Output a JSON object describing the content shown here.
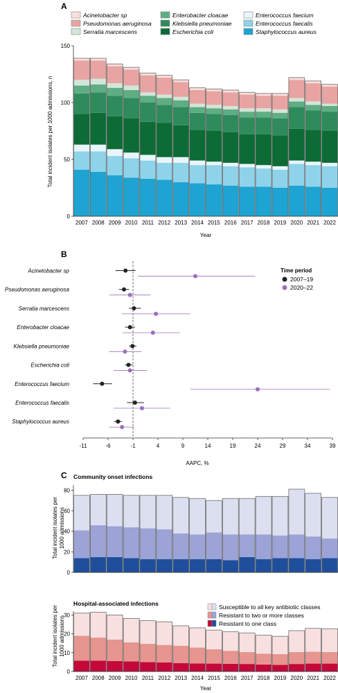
{
  "colors": {
    "acinetobacter": "#f9dede",
    "pseudomonas": "#e8a4a2",
    "serratia": "#d2e5d8",
    "enterobacter": "#5fae83",
    "klebsiella": "#2f8b5c",
    "ecoli": "#0d6b35",
    "efaecium": "#e8f6fb",
    "efaecalis": "#8fd3ea",
    "saureus": "#1ea4d3",
    "p2007": "#222222",
    "p2020": "#9b6fbd",
    "susceptible": "#dcdff0",
    "resist2": "#9ca3d6",
    "resist1_comm": "#1f4f9c",
    "susceptible_hosp": "#f9e0e0",
    "resist2_hosp": "#e6958f",
    "resist1_hosp": "#c4083a"
  },
  "panel_a": {
    "letter": "A",
    "legend": [
      {
        "key": "acinetobacter",
        "label": "Acinetobacter sp"
      },
      {
        "key": "enterobacter",
        "label": "Enterobacter cloacae"
      },
      {
        "key": "efaecium",
        "label": "Enterococcus faecium"
      },
      {
        "key": "pseudomonas",
        "label": "Pseudomonas aeruginosa"
      },
      {
        "key": "klebsiella",
        "label": "Klebsiella pneumoniae"
      },
      {
        "key": "efaecalis",
        "label": "Enterococcus faecalis"
      },
      {
        "key": "serratia",
        "label": "Serratia marcescens"
      },
      {
        "key": "ecoli",
        "label": "Escherichia coli"
      },
      {
        "key": "saureus",
        "label": "Staphylococcus aureus"
      }
    ],
    "ylabel": "Total incident isolates per 1000 admissions, n",
    "xlabel": "Year"
  },
  "panel_b": {
    "letter": "B",
    "legend_title": "Time period",
    "legend": [
      {
        "key": "p2007",
        "label": "2007–19"
      },
      {
        "key": "p2020",
        "label": "2020–22"
      }
    ],
    "xlabel": "AAPC, %"
  },
  "panel_c": {
    "letter": "C",
    "title_comm": "Community onset infections",
    "title_hosp": "Hospital-associated infections",
    "ylabel_line1": "Total incident isolates per",
    "ylabel_line2": "1000 admissions",
    "xlabel": "Year",
    "legend": [
      {
        "key": "susceptible",
        "label": "Susceptible to all key antibiotic classes"
      },
      {
        "key": "resist2",
        "label": "Resistant to two or more classes"
      },
      {
        "key": "resist1",
        "label": "Resistant to one class"
      }
    ]
  },
  "chart_data": [
    {
      "type": "bar",
      "stacked": true,
      "categories": [
        "2007",
        "2008",
        "2009",
        "2010",
        "2011",
        "2012",
        "2013",
        "2014",
        "2015",
        "2016",
        "2017",
        "2018",
        "2019",
        "2020",
        "2021",
        "2022"
      ],
      "ylim": [
        0,
        150
      ],
      "yticks": [
        0,
        50,
        100,
        150
      ],
      "series": [
        {
          "name": "Staphylococcus aureus",
          "key": "saureus",
          "values": [
            41,
            39,
            36,
            34,
            33,
            32,
            30,
            29,
            28,
            27,
            26,
            26,
            25,
            27,
            26,
            25
          ]
        },
        {
          "name": "Enterococcus faecalis",
          "key": "efaecalis",
          "values": [
            16,
            18,
            17,
            17,
            16,
            15,
            17,
            16,
            17,
            17,
            17,
            16,
            16,
            19,
            19,
            19
          ]
        },
        {
          "name": "Enterococcus faecium",
          "key": "efaecium",
          "values": [
            6,
            6,
            6,
            5,
            5,
            5,
            5,
            4,
            3,
            3,
            3,
            3,
            3,
            3,
            3,
            3
          ]
        },
        {
          "name": "Escherichia coli",
          "key": "ecoli",
          "values": [
            27,
            28,
            29,
            30,
            29,
            30,
            28,
            27,
            27,
            27,
            26,
            27,
            27,
            28,
            28,
            28
          ]
        },
        {
          "name": "Klebsiella pneumoniae",
          "key": "klebsiella",
          "values": [
            18,
            18,
            18,
            18,
            17,
            16,
            16,
            15,
            15,
            15,
            15,
            15,
            15,
            19,
            17,
            17
          ]
        },
        {
          "name": "Enterobacter cloacae",
          "key": "enterobacter",
          "values": [
            7,
            7,
            7,
            7,
            6,
            6,
            6,
            5,
            5,
            5,
            5,
            5,
            5,
            5,
            5,
            5
          ]
        },
        {
          "name": "Serratia marcescens",
          "key": "serratia",
          "values": [
            5,
            5,
            4,
            4,
            3,
            3,
            3,
            3,
            3,
            3,
            3,
            3,
            3,
            3,
            3,
            2
          ]
        },
        {
          "name": "Pseudomonas aeruginosa",
          "key": "pseudomonas",
          "values": [
            17,
            16,
            15,
            14,
            15,
            15,
            13,
            12,
            12,
            12,
            12,
            11,
            12,
            16,
            16,
            15
          ]
        },
        {
          "name": "Acinetobacter sp",
          "key": "acinetobacter",
          "values": [
            2,
            2,
            2,
            2,
            2,
            2,
            2,
            2,
            2,
            2,
            2,
            2,
            2,
            2,
            2,
            2
          ]
        }
      ]
    },
    {
      "type": "scatter",
      "subtype": "forest",
      "categories": [
        "Acinetobacter sp",
        "Pseudomonas aeruginosa",
        "Serratia marcescens",
        "Enterobacter cloacae",
        "Klebsiella pneumoniae",
        "Escherichia coli",
        "Enterococcus faecium",
        "Enterococcus faecalis",
        "Staphylococcus aureus"
      ],
      "xlim": [
        -11,
        39
      ],
      "xticks": [
        -11,
        -6,
        -1,
        4,
        9,
        14,
        19,
        24,
        29,
        34,
        39
      ],
      "reference_line": -1,
      "series": [
        {
          "name": "2007–19",
          "key": "p2007",
          "estimate": [
            -2.5,
            -2.8,
            -0.8,
            -1.6,
            -1.1,
            -1.9,
            -7.2,
            -0.6,
            -4.0
          ],
          "lower": [
            -4.5,
            -3.8,
            -1.8,
            -2.6,
            -1.8,
            -2.6,
            -9.0,
            -2.2,
            -4.8
          ],
          "upper": [
            -0.5,
            -1.8,
            0.6,
            -0.6,
            -0.3,
            -1.1,
            -5.2,
            1.2,
            -3.2
          ]
        },
        {
          "name": "2020–22",
          "key": "p2020",
          "estimate": [
            11.5,
            -1.6,
            3.6,
            3.0,
            -2.6,
            -1.6,
            24.0,
            0.8,
            -3.2
          ],
          "lower": [
            0.0,
            -5.7,
            -3.2,
            -3.1,
            -5.8,
            -4.9,
            10.5,
            -4.9,
            -5.8
          ],
          "upper": [
            23.5,
            2.5,
            10.5,
            8.4,
            0.7,
            1.8,
            38.5,
            6.5,
            -0.7
          ]
        }
      ]
    },
    {
      "type": "bar",
      "stacked": true,
      "title": "Community onset infections",
      "categories": [
        "2007",
        "2008",
        "2009",
        "2010",
        "2011",
        "2012",
        "2013",
        "2014",
        "2015",
        "2016",
        "2017",
        "2018",
        "2019",
        "2020",
        "2021",
        "2022"
      ],
      "ylim": [
        0,
        85
      ],
      "yticks": [
        0,
        20,
        40,
        60,
        80
      ],
      "series": [
        {
          "name": "Resistant to one class",
          "key": "resist1_comm",
          "values": [
            14,
            15,
            15,
            14,
            13,
            13,
            13,
            13,
            13,
            12,
            15,
            13,
            14,
            14,
            13,
            14
          ]
        },
        {
          "name": "Resistant to two or more classes",
          "key": "resist2",
          "values": [
            27,
            31,
            30,
            30,
            30,
            29,
            25,
            24,
            26,
            25,
            22,
            24,
            22,
            23,
            22,
            19
          ]
        },
        {
          "name": "Susceptible to all key antibiotic classes",
          "key": "susceptible",
          "values": [
            34,
            30,
            31,
            31,
            32,
            33,
            35,
            35,
            31,
            35,
            35,
            37,
            38,
            44,
            42,
            40
          ]
        }
      ]
    },
    {
      "type": "bar",
      "stacked": true,
      "title": "Hospital-associated infections",
      "categories": [
        "2007",
        "2008",
        "2009",
        "2010",
        "2011",
        "2012",
        "2013",
        "2014",
        "2015",
        "2016",
        "2017",
        "2018",
        "2019",
        "2020",
        "2021",
        "2022"
      ],
      "ylim": [
        0,
        32
      ],
      "yticks": [
        0,
        10,
        20,
        30
      ],
      "series": [
        {
          "name": "Resistant to one class",
          "key": "resist1_hosp",
          "values": [
            5.8,
            5.8,
            5.6,
            5.4,
            5.0,
            4.8,
            4.5,
            4.3,
            4.2,
            4.1,
            4.0,
            3.7,
            3.5,
            4.0,
            4.2,
            4.2
          ]
        },
        {
          "name": "Resistant to two or more classes",
          "key": "resist2_hosp",
          "values": [
            13.2,
            12.2,
            11.4,
            10.1,
            9.7,
            9.3,
            9.2,
            8.4,
            7.6,
            6.9,
            6.3,
            5.8,
            5.7,
            6.3,
            6.3,
            6.1
          ]
        },
        {
          "name": "Susceptible to all key antibiotic classes",
          "key": "susceptible_hosp",
          "values": [
            12.0,
            13.5,
            13.0,
            12.7,
            12.3,
            12.3,
            10.6,
            10.5,
            10.2,
            10.1,
            10.2,
            9.8,
            9.5,
            11.4,
            12.4,
            12.4
          ]
        }
      ]
    }
  ]
}
